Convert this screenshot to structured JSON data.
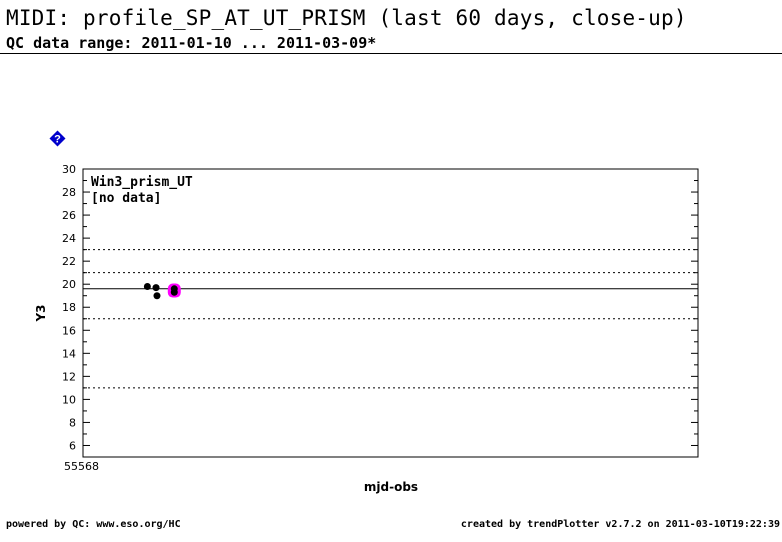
{
  "header": {
    "title": "MIDI: profile_SP_AT_UT_PRISM (last 60 days, close-up)",
    "subtitle": "QC data range: 2011-01-10 ... 2011-03-09*"
  },
  "footer": {
    "left": "powered by QC: www.eso.org/HC",
    "right": "created by trendPlotter v2.7.2 on 2011-03-10T19:22:39"
  },
  "colors": {
    "highlight": "#ff00ff",
    "help_icon": "#0000cc",
    "points": "#000000"
  },
  "chart_data": {
    "type": "scatter",
    "panel_label": "Win3_prism_UT",
    "panel_note": "[no data]",
    "xlabel": "mjd-obs",
    "ylabel": "Y3",
    "x_tick_labels": [
      "55568"
    ],
    "xlim": [
      55568,
      55632
    ],
    "ylim": [
      5,
      30
    ],
    "y_ticks": [
      6,
      8,
      10,
      12,
      14,
      16,
      18,
      20,
      22,
      24,
      26,
      28,
      30
    ],
    "reference_lines": [
      {
        "y": 19.6,
        "style": "solid"
      },
      {
        "y": 23.0,
        "style": "dotted"
      },
      {
        "y": 21.0,
        "style": "dotted"
      },
      {
        "y": 17.0,
        "style": "dotted"
      },
      {
        "y": 11.0,
        "style": "dotted"
      }
    ],
    "points": [
      {
        "x": 55574.7,
        "y": 19.8
      },
      {
        "x": 55575.6,
        "y": 19.7
      },
      {
        "x": 55575.7,
        "y": 19.0
      },
      {
        "x": 55577.5,
        "y": 19.6
      },
      {
        "x": 55577.5,
        "y": 19.3
      }
    ],
    "highlighted_points": [
      {
        "x": 55577.5,
        "y": 19.45
      }
    ]
  }
}
